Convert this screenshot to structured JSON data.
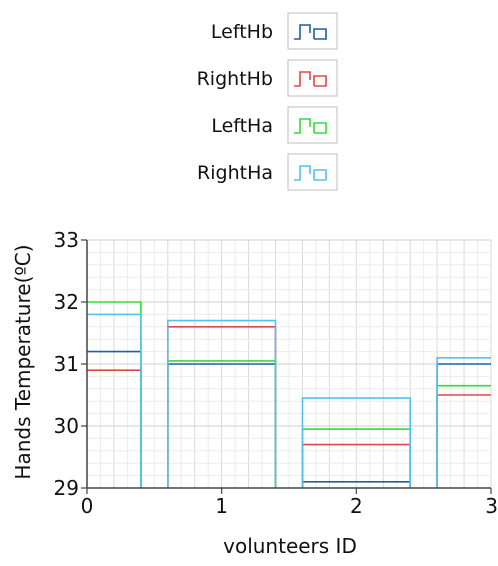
{
  "chart_data": {
    "type": "bar",
    "title": "",
    "xlabel": "volunteers ID",
    "ylabel": "Hands Temperature(ºC)",
    "xlim": [
      0,
      3
    ],
    "ylim": [
      29,
      33
    ],
    "xticks": [
      "0",
      "1",
      "2",
      "3"
    ],
    "yticks": [
      "29",
      "30",
      "31",
      "32",
      "33"
    ],
    "grid": true,
    "legend_position": "top-center",
    "categories": [
      "0",
      "1",
      "2",
      "3"
    ],
    "series": [
      {
        "name": "LeftHb",
        "color": "#1f5fa8",
        "values": [
          31.2,
          31.0,
          29.1,
          31.0
        ]
      },
      {
        "name": "RightHb",
        "color": "#e04848",
        "values": [
          30.9,
          31.6,
          29.7,
          30.5
        ]
      },
      {
        "name": "LeftHa",
        "color": "#33dd33",
        "values": [
          32.0,
          31.05,
          29.95,
          30.65
        ]
      },
      {
        "name": "RightHa",
        "color": "#55c0f0",
        "values": [
          31.8,
          31.7,
          30.45,
          31.1
        ]
      }
    ]
  }
}
